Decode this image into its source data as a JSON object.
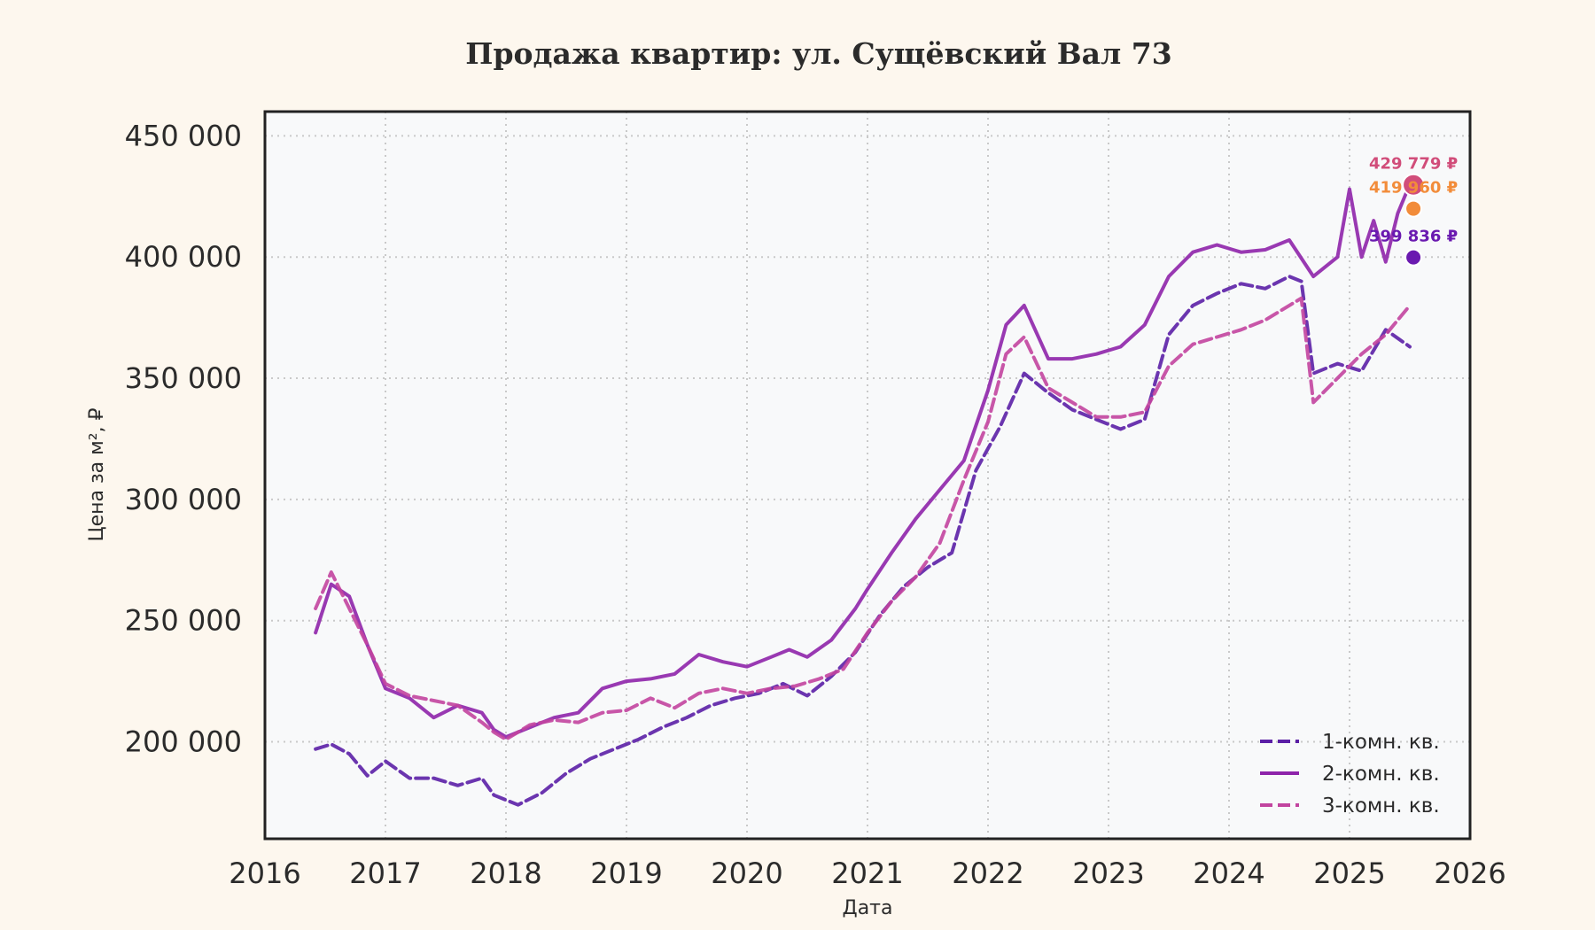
{
  "chart_data": {
    "type": "line",
    "title": "Продажа квартир: ул. Сущёвский Вал 73",
    "xlabel": "Дата",
    "ylabel": "Цена за м², ₽",
    "xlim": [
      2016.0,
      2026.0
    ],
    "ylim": [
      160000,
      460000
    ],
    "x_ticks": [
      2016,
      2017,
      2018,
      2019,
      2020,
      2021,
      2022,
      2023,
      2024,
      2025,
      2026
    ],
    "x_tick_labels": [
      "2016",
      "2017",
      "2018",
      "2019",
      "2020",
      "2021",
      "2022",
      "2023",
      "2024",
      "2025",
      "2026"
    ],
    "y_ticks": [
      200000,
      250000,
      300000,
      350000,
      400000,
      450000
    ],
    "y_tick_labels": [
      "200 000",
      "250 000",
      "300 000",
      "350 000",
      "400 000",
      "450 000"
    ],
    "grid": true,
    "legend_position": "bottom-right",
    "series": [
      {
        "name": "1-комн. кв.",
        "color": "#5b1fa6",
        "style": "dashed",
        "x": [
          2016.42,
          2016.55,
          2016.7,
          2016.85,
          2017.0,
          2017.2,
          2017.4,
          2017.6,
          2017.8,
          2017.9,
          2018.0,
          2018.1,
          2018.3,
          2018.5,
          2018.7,
          2018.9,
          2019.1,
          2019.3,
          2019.5,
          2019.7,
          2019.9,
          2020.1,
          2020.3,
          2020.5,
          2020.7,
          2020.9,
          2021.1,
          2021.3,
          2021.5,
          2021.7,
          2021.9,
          2022.1,
          2022.3,
          2022.5,
          2022.7,
          2022.9,
          2023.1,
          2023.3,
          2023.5,
          2023.7,
          2023.9,
          2024.1,
          2024.3,
          2024.5,
          2024.6,
          2024.7,
          2024.9,
          2025.1,
          2025.3,
          2025.5
        ],
        "y": [
          197000,
          199000,
          195000,
          186000,
          192000,
          185000,
          185000,
          182000,
          185000,
          178000,
          176000,
          174000,
          179000,
          187000,
          193000,
          197000,
          201000,
          206000,
          210000,
          215000,
          218000,
          220000,
          224000,
          219000,
          227000,
          237000,
          252000,
          264000,
          272000,
          278000,
          312000,
          330000,
          352000,
          344000,
          337000,
          333000,
          329000,
          333000,
          368000,
          380000,
          385000,
          389000,
          387000,
          392000,
          390000,
          352000,
          356000,
          353000,
          370000,
          363000
        ]
      },
      {
        "name": "2-комн. кв.",
        "color": "#8e24aa",
        "style": "solid",
        "x": [
          2016.42,
          2016.55,
          2016.7,
          2016.85,
          2017.0,
          2017.2,
          2017.4,
          2017.6,
          2017.8,
          2017.9,
          2018.0,
          2018.2,
          2018.4,
          2018.6,
          2018.8,
          2019.0,
          2019.2,
          2019.4,
          2019.6,
          2019.8,
          2020.0,
          2020.2,
          2020.35,
          2020.5,
          2020.7,
          2020.9,
          2021.0,
          2021.2,
          2021.4,
          2021.6,
          2021.8,
          2022.0,
          2022.15,
          2022.3,
          2022.5,
          2022.7,
          2022.9,
          2023.1,
          2023.3,
          2023.5,
          2023.7,
          2023.9,
          2024.1,
          2024.3,
          2024.5,
          2024.7,
          2024.9,
          2025.0,
          2025.1,
          2025.2,
          2025.3,
          2025.4,
          2025.5
        ],
        "y": [
          245000,
          265000,
          260000,
          240000,
          222000,
          218000,
          210000,
          215000,
          212000,
          205000,
          202000,
          206000,
          210000,
          212000,
          222000,
          225000,
          226000,
          228000,
          236000,
          233000,
          231000,
          235000,
          238000,
          235000,
          242000,
          255000,
          263000,
          278000,
          292000,
          304000,
          316000,
          345000,
          372000,
          380000,
          358000,
          358000,
          360000,
          363000,
          372000,
          392000,
          402000,
          405000,
          402000,
          403000,
          407000,
          392000,
          400000,
          428000,
          400000,
          415000,
          398000,
          418000,
          430000
        ]
      },
      {
        "name": "3-комн. кв.",
        "color": "#c2449f",
        "style": "dashed",
        "x": [
          2016.42,
          2016.55,
          2016.7,
          2016.85,
          2017.0,
          2017.2,
          2017.4,
          2017.6,
          2017.8,
          2017.9,
          2018.0,
          2018.2,
          2018.4,
          2018.6,
          2018.8,
          2019.0,
          2019.2,
          2019.4,
          2019.6,
          2019.8,
          2020.0,
          2020.2,
          2020.4,
          2020.6,
          2020.8,
          2021.0,
          2021.2,
          2021.4,
          2021.6,
          2021.8,
          2022.0,
          2022.15,
          2022.3,
          2022.5,
          2022.7,
          2022.9,
          2023.1,
          2023.3,
          2023.5,
          2023.7,
          2023.9,
          2024.1,
          2024.3,
          2024.5,
          2024.6,
          2024.7,
          2024.9,
          2025.1,
          2025.3,
          2025.5
        ],
        "y": [
          255000,
          270000,
          255000,
          240000,
          224000,
          219000,
          217000,
          215000,
          208000,
          204000,
          201000,
          207000,
          209000,
          208000,
          212000,
          213000,
          218000,
          214000,
          220000,
          222000,
          220000,
          222000,
          223000,
          226000,
          230000,
          245000,
          258000,
          268000,
          282000,
          308000,
          332000,
          360000,
          367000,
          346000,
          340000,
          334000,
          334000,
          336000,
          355000,
          364000,
          367000,
          370000,
          374000,
          380000,
          383000,
          340000,
          350000,
          360000,
          368000,
          380000
        ]
      }
    ],
    "annotations": [
      {
        "text": "429 779 ₽",
        "x": 2025.53,
        "y": 429779,
        "color": "#d14d7a"
      },
      {
        "text": "419 960 ₽",
        "x": 2025.53,
        "y": 419960,
        "color": "#f28c3a"
      },
      {
        "text": "399 836 ₽",
        "x": 2025.53,
        "y": 399836,
        "color": "#6a1ab0"
      }
    ]
  }
}
